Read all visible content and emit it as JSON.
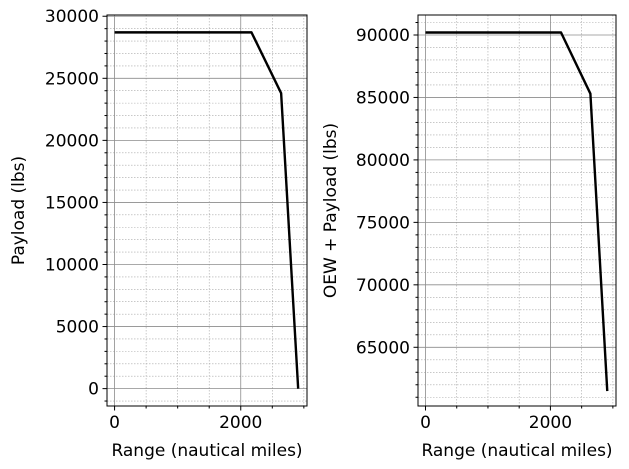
{
  "chart_data": [
    {
      "type": "line",
      "title": "",
      "xlabel": "Range (nautical miles)",
      "ylabel": "Payload (lbs)",
      "xlim": [
        -120,
        3050
      ],
      "ylim": [
        -1400,
        30100
      ],
      "xticks": [
        0,
        2000
      ],
      "yticks": [
        0,
        5000,
        10000,
        15000,
        20000,
        25000,
        30000
      ],
      "xminor": 500,
      "yminor": 1000,
      "grid": true,
      "series": [
        {
          "x": [
            0,
            2170,
            2640,
            2910
          ],
          "y": [
            28700,
            28700,
            23800,
            0
          ]
        }
      ]
    },
    {
      "type": "line",
      "title": "",
      "xlabel": "Range (nautical miles)",
      "ylabel": "OEW + Payload (lbs)",
      "xlim": [
        -120,
        3050
      ],
      "ylim": [
        60300,
        91600
      ],
      "xticks": [
        0,
        2000
      ],
      "yticks": [
        65000,
        70000,
        75000,
        80000,
        85000,
        90000
      ],
      "xminor": 500,
      "yminor": 1000,
      "grid": true,
      "series": [
        {
          "x": [
            0,
            2170,
            2640,
            2910
          ],
          "y": [
            90200,
            90200,
            85300,
            61500
          ]
        }
      ]
    }
  ]
}
